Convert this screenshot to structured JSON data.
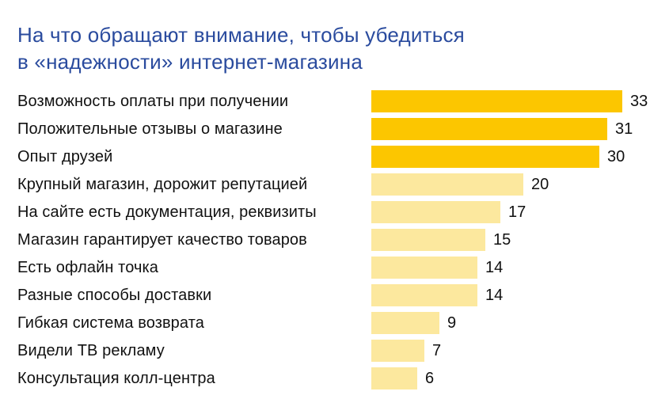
{
  "title": {
    "line1": "На что обращают внимание, чтобы убедиться",
    "line2": "в «надежности» интернет-магазина"
  },
  "colors": {
    "background": "#FFFFFF",
    "title_text": "#2A4B9E",
    "label_text": "#111111",
    "bar_highlight": "#FCC600",
    "bar_normal": "#FCE89E"
  },
  "chart_data": {
    "type": "bar",
    "orientation": "horizontal",
    "title": "На что обращают внимание, чтобы убедиться в «надежности» интернет-магазина",
    "categories": [
      "Возможность оплаты при получении",
      "Положительные отзывы о магазине",
      "Опыт друзей",
      "Крупный магазин, дорожит репутацией",
      "На сайте есть документация, реквизиты",
      "Магазин гарантирует качество товаров",
      "Есть офлайн точка",
      "Разные способы доставки",
      "Гибкая система возврата",
      "Видели ТВ рекламу",
      "Консультация колл-центра"
    ],
    "values": [
      33,
      31,
      30,
      20,
      17,
      15,
      14,
      14,
      9,
      7,
      6
    ],
    "highlighted": [
      true,
      true,
      true,
      false,
      false,
      false,
      false,
      false,
      false,
      false,
      false
    ],
    "xlabel": "",
    "ylabel": "",
    "xlim": [
      0,
      33
    ],
    "grid": false,
    "legend": "none",
    "value_labels": "end-of-bar"
  }
}
